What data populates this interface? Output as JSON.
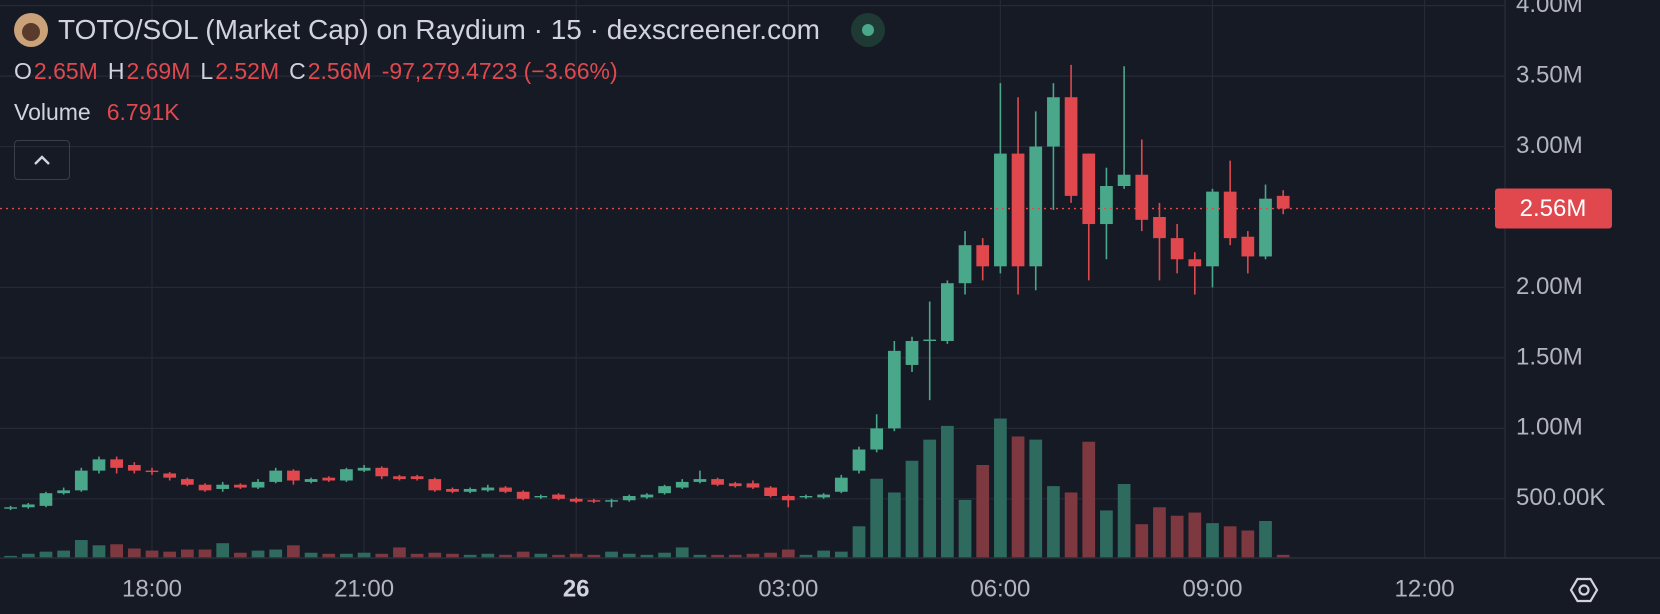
{
  "header": {
    "title": "TOTO/SOL (Market Cap) on Raydium · 15 · dexscreener.com",
    "ohlc": [
      {
        "key": "O",
        "value": "2.65M"
      },
      {
        "key": "H",
        "value": "2.69M"
      },
      {
        "key": "L",
        "value": "2.52M"
      },
      {
        "key": "C",
        "value": "2.56M"
      }
    ],
    "change": "-97,279.4723 (−3.66%)",
    "volume_label": "Volume",
    "volume_value": "6.791K"
  },
  "chart_data": {
    "type": "candlestick",
    "open": [
      0.43,
      0.44,
      0.45,
      0.54,
      0.56,
      0.7,
      0.78,
      0.74,
      0.7,
      0.68,
      0.64,
      0.6,
      0.57,
      0.6,
      0.58,
      0.62,
      0.7,
      0.62,
      0.65,
      0.63,
      0.7,
      0.72,
      0.66,
      0.66,
      0.64,
      0.57,
      0.55,
      0.56,
      0.58,
      0.55,
      0.51,
      0.53,
      0.5,
      0.49,
      0.48,
      0.49,
      0.51,
      0.54,
      0.58,
      0.62,
      0.64,
      0.61,
      0.61,
      0.58,
      0.52,
      0.51,
      0.51,
      0.55,
      0.7,
      0.85,
      1.0,
      1.45,
      1.62,
      1.62,
      2.03,
      2.3,
      2.15,
      2.95,
      2.15,
      3.0,
      3.35,
      2.95,
      2.45,
      2.72,
      2.8,
      2.5,
      2.35,
      2.2,
      2.15,
      2.68,
      2.36,
      2.22,
      2.65
    ],
    "high": [
      0.45,
      0.47,
      0.55,
      0.58,
      0.72,
      0.8,
      0.8,
      0.76,
      0.72,
      0.69,
      0.65,
      0.61,
      0.62,
      0.61,
      0.64,
      0.72,
      0.71,
      0.65,
      0.66,
      0.72,
      0.74,
      0.73,
      0.67,
      0.67,
      0.65,
      0.58,
      0.58,
      0.6,
      0.59,
      0.56,
      0.53,
      0.54,
      0.51,
      0.5,
      0.5,
      0.53,
      0.54,
      0.6,
      0.64,
      0.7,
      0.65,
      0.62,
      0.63,
      0.59,
      0.53,
      0.53,
      0.54,
      0.67,
      0.87,
      1.1,
      1.62,
      1.65,
      1.9,
      2.05,
      2.4,
      2.35,
      3.45,
      3.35,
      3.25,
      3.45,
      3.58,
      2.95,
      2.85,
      3.57,
      3.05,
      2.6,
      2.45,
      2.25,
      2.7,
      2.9,
      2.4,
      2.73,
      2.69
    ],
    "low": [
      0.42,
      0.43,
      0.44,
      0.53,
      0.55,
      0.68,
      0.68,
      0.68,
      0.67,
      0.63,
      0.59,
      0.55,
      0.55,
      0.57,
      0.57,
      0.61,
      0.6,
      0.61,
      0.62,
      0.62,
      0.69,
      0.64,
      0.63,
      0.63,
      0.55,
      0.54,
      0.54,
      0.55,
      0.54,
      0.49,
      0.5,
      0.49,
      0.47,
      0.47,
      0.44,
      0.48,
      0.5,
      0.53,
      0.57,
      0.61,
      0.59,
      0.58,
      0.57,
      0.51,
      0.44,
      0.5,
      0.5,
      0.54,
      0.68,
      0.83,
      0.98,
      1.4,
      1.2,
      1.6,
      1.95,
      2.05,
      2.1,
      1.95,
      1.98,
      2.55,
      2.6,
      2.05,
      2.2,
      2.7,
      2.4,
      2.05,
      2.1,
      1.95,
      2.0,
      2.3,
      2.1,
      2.2,
      2.52
    ],
    "close": [
      0.44,
      0.46,
      0.54,
      0.56,
      0.7,
      0.78,
      0.72,
      0.7,
      0.69,
      0.65,
      0.6,
      0.56,
      0.6,
      0.58,
      0.62,
      0.7,
      0.63,
      0.64,
      0.63,
      0.71,
      0.72,
      0.66,
      0.64,
      0.64,
      0.56,
      0.55,
      0.57,
      0.58,
      0.55,
      0.5,
      0.52,
      0.5,
      0.48,
      0.48,
      0.49,
      0.52,
      0.53,
      0.59,
      0.62,
      0.64,
      0.6,
      0.59,
      0.58,
      0.52,
      0.49,
      0.52,
      0.53,
      0.65,
      0.85,
      1.0,
      1.55,
      1.62,
      1.63,
      2.03,
      2.3,
      2.15,
      2.95,
      2.15,
      3.0,
      3.35,
      2.65,
      2.45,
      2.72,
      2.8,
      2.48,
      2.35,
      2.2,
      2.15,
      2.68,
      2.35,
      2.22,
      2.63,
      2.56
    ],
    "volume": [
      4520,
      9040,
      13560,
      15820,
      38420,
      27120,
      29380,
      20340,
      15820,
      13560,
      18080,
      18080,
      31640,
      11300,
      15820,
      18080,
      27120,
      11300,
      9040,
      9040,
      11300,
      9040,
      22600,
      9040,
      11300,
      9040,
      6780,
      9040,
      6780,
      13560,
      9040,
      6780,
      9040,
      6780,
      13560,
      9040,
      6780,
      11300,
      22600,
      6780,
      6780,
      6780,
      9040,
      11300,
      18080,
      6780,
      15820,
      13560,
      67800,
      169500,
      140120,
      207920,
      253120,
      282500,
      124300,
      198880,
      298320,
      259900,
      253120,
      153680,
      140120,
      248600,
      101700,
      158200,
      72320,
      108480,
      90400,
      97180,
      74580,
      67800,
      58760,
      79100,
      6791
    ],
    "up_color": "#4aa88a",
    "down_color": "#e0484e",
    "up_volume_color": "#2e6b5e",
    "down_volume_color": "#7e3840",
    "price_label": "2.56M",
    "ylim": [
      0.08,
      4.04
    ],
    "yticks": [
      {
        "value": 0.5,
        "label": "500.00K"
      },
      {
        "value": 1,
        "label": "1.00M"
      },
      {
        "value": 1.5,
        "label": "1.50M"
      },
      {
        "value": 2,
        "label": "2.00M"
      },
      {
        "value": 3,
        "label": "3.00M"
      },
      {
        "value": 3.5,
        "label": "3.50M"
      },
      {
        "value": 4,
        "label": "4.00M"
      }
    ],
    "xlim": [
      -0.6,
      84.55
    ],
    "xticks": [
      {
        "value": 8,
        "label": "18:00"
      },
      {
        "value": 20,
        "label": "21:00"
      },
      {
        "value": 32,
        "label": "26"
      },
      {
        "value": 44,
        "label": "03:00"
      },
      {
        "value": 56,
        "label": "06:00"
      },
      {
        "value": 68,
        "label": "09:00"
      },
      {
        "value": 80,
        "label": "12:00"
      }
    ],
    "grid": true
  }
}
